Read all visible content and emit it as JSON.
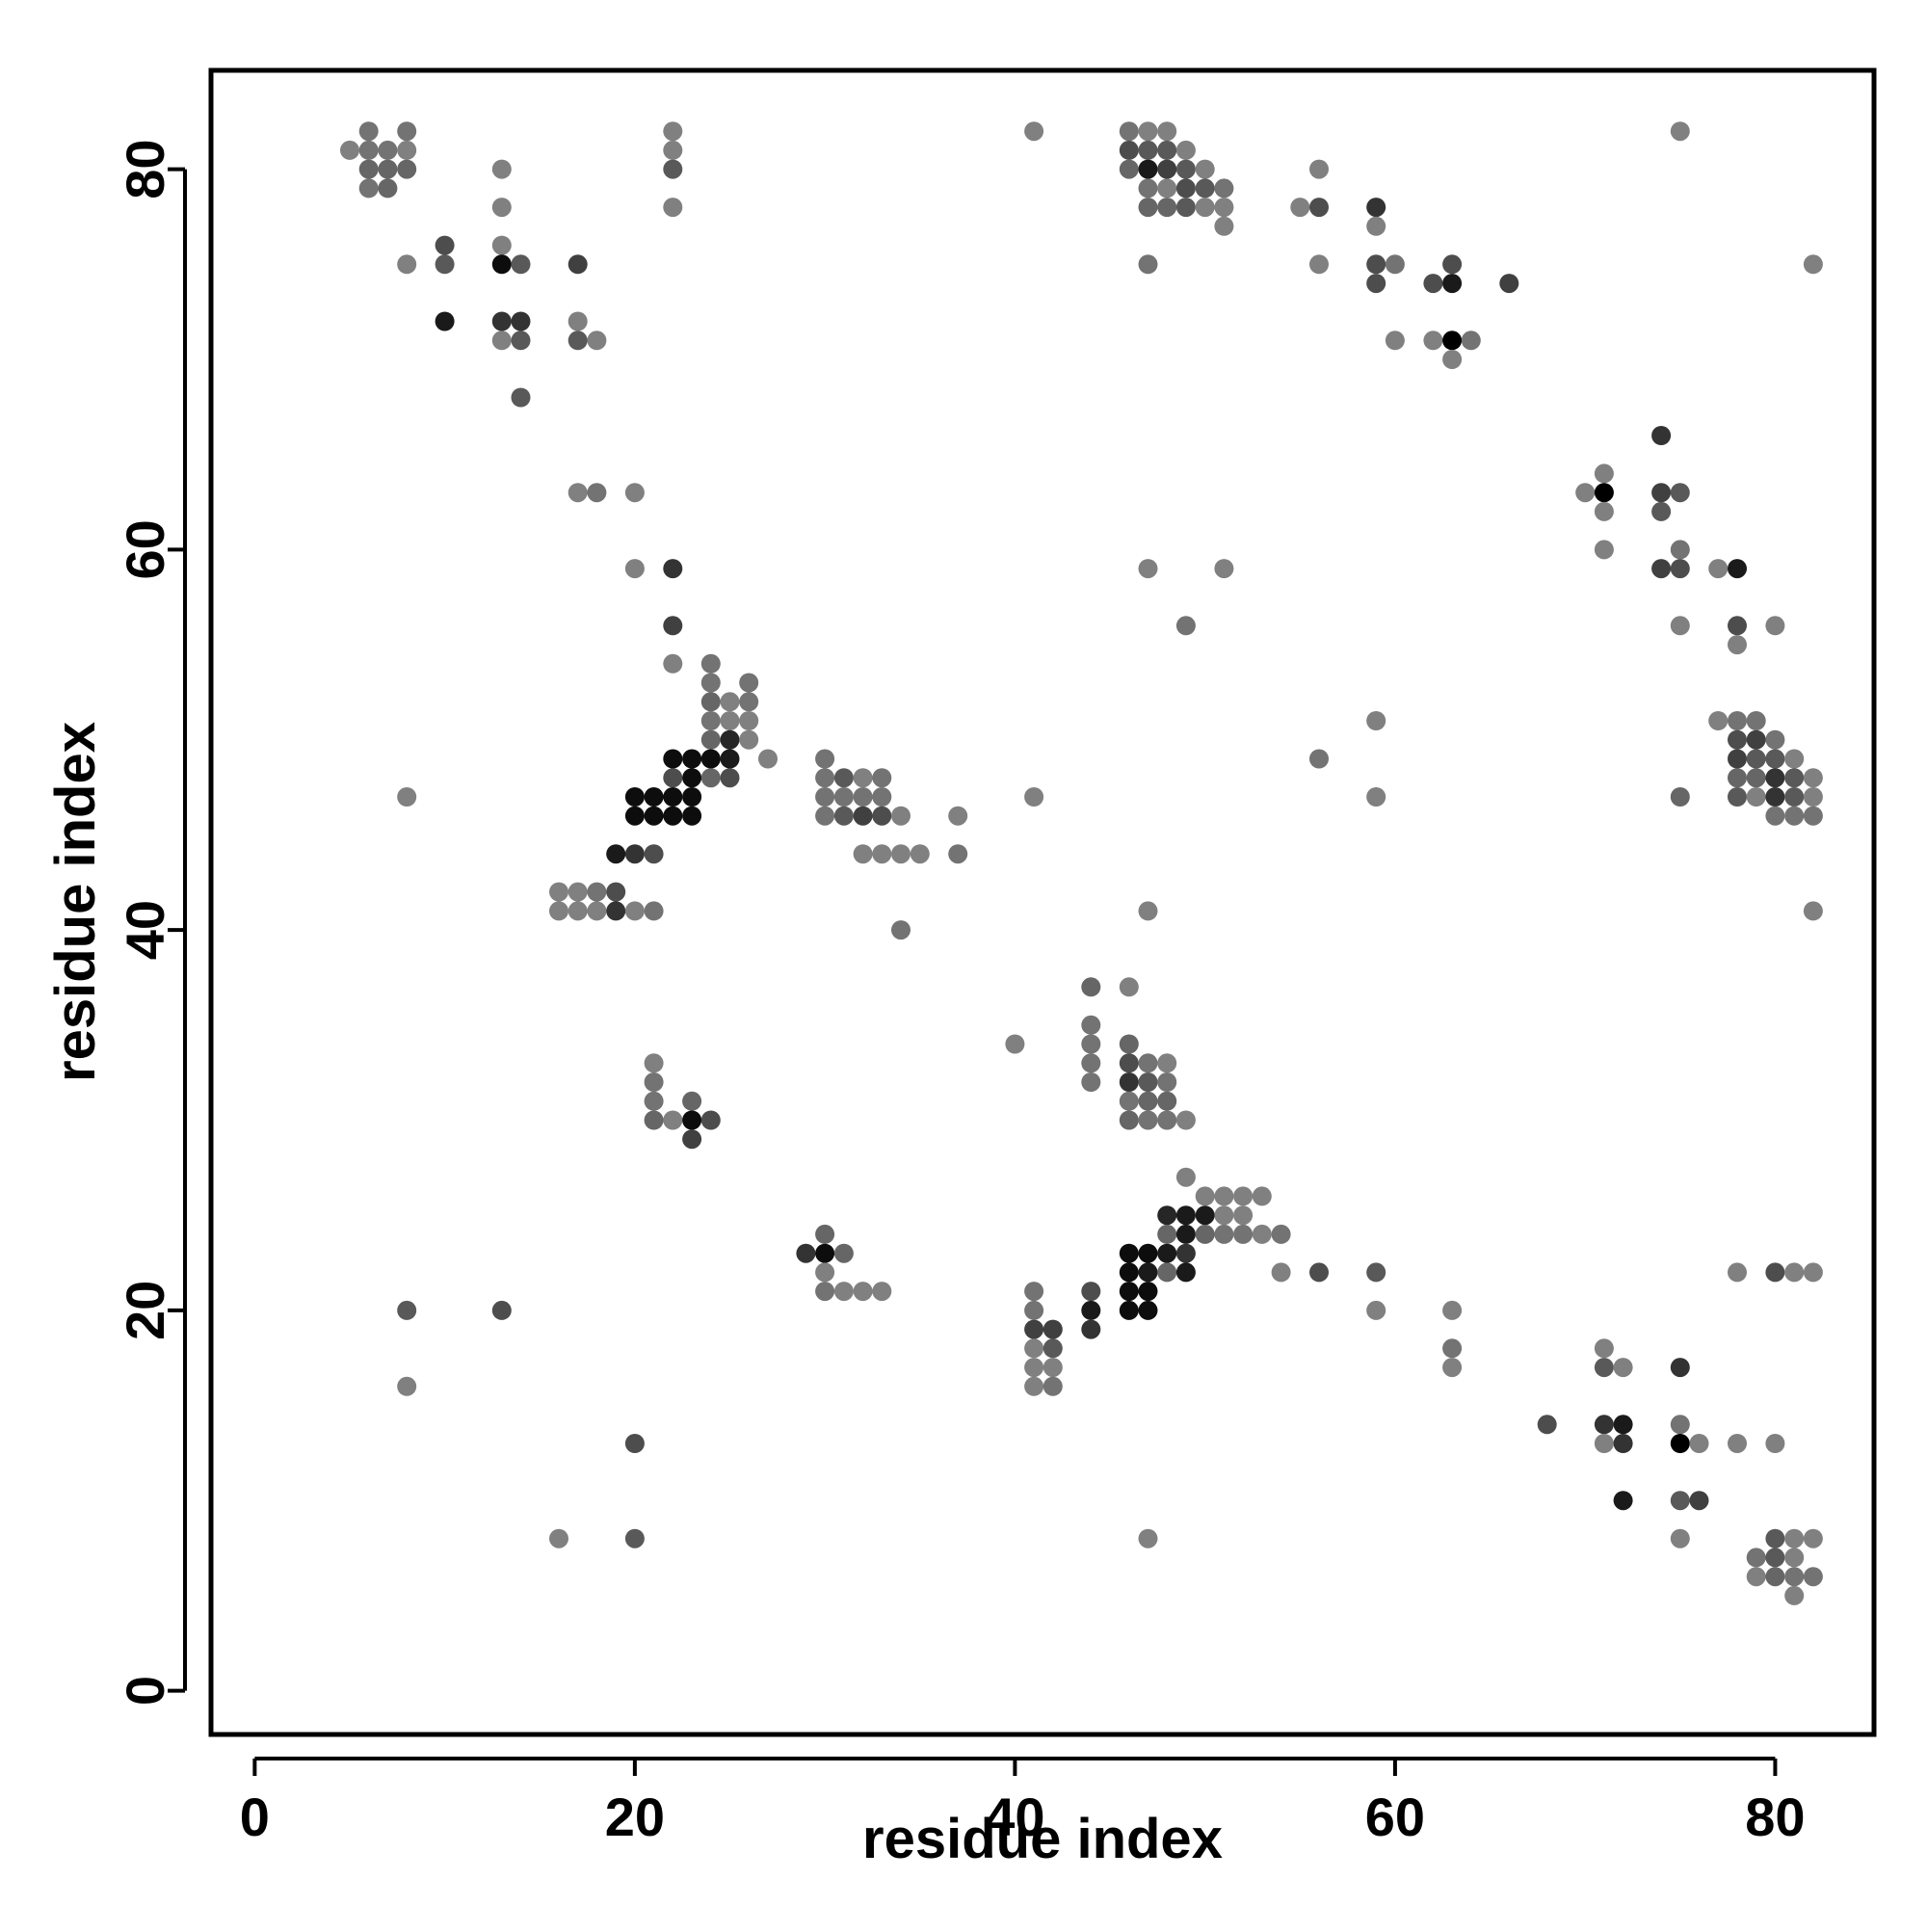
{
  "chart_data": {
    "type": "scatter",
    "title": "",
    "xlabel": "residue index",
    "ylabel": "residue index",
    "xlim": [
      -2.3,
      85.2
    ],
    "ylim": [
      -2.3,
      85.2
    ],
    "xticks": [
      "0",
      "20",
      "40",
      "60",
      "80"
    ],
    "yticks": [
      "0",
      "20",
      "40",
      "60",
      "80"
    ],
    "grid": false,
    "legend": "none",
    "point_color_scale": "grayscale (darker = stronger contact)",
    "points": [
      [
        5,
        81,
        0.5
      ],
      [
        6,
        82,
        0.45
      ],
      [
        6,
        81,
        0.45
      ],
      [
        6,
        80,
        0.4
      ],
      [
        6,
        79,
        0.45
      ],
      [
        7,
        81,
        0.45
      ],
      [
        7,
        80,
        0.4
      ],
      [
        7,
        79,
        0.4
      ],
      [
        8,
        82,
        0.45
      ],
      [
        8,
        81,
        0.5
      ],
      [
        8,
        80,
        0.4
      ],
      [
        8,
        75,
        0.5
      ],
      [
        8,
        47,
        0.5
      ],
      [
        8,
        20,
        0.35
      ],
      [
        8,
        16,
        0.5
      ],
      [
        10,
        76,
        0.3
      ],
      [
        10,
        75,
        0.35
      ],
      [
        10,
        72,
        0.1
      ],
      [
        13,
        80,
        0.5
      ],
      [
        13,
        78,
        0.5
      ],
      [
        13,
        76,
        0.5
      ],
      [
        13,
        75,
        0.05
      ],
      [
        13,
        72,
        0.2
      ],
      [
        13,
        71,
        0.5
      ],
      [
        13,
        20,
        0.3
      ],
      [
        14,
        75,
        0.35
      ],
      [
        14,
        72,
        0.2
      ],
      [
        14,
        71,
        0.35
      ],
      [
        14,
        68,
        0.35
      ],
      [
        16,
        42,
        0.5
      ],
      [
        16,
        41,
        0.5
      ],
      [
        16,
        8,
        0.5
      ],
      [
        17,
        75,
        0.25
      ],
      [
        17,
        72,
        0.5
      ],
      [
        17,
        71,
        0.35
      ],
      [
        17,
        63,
        0.5
      ],
      [
        17,
        42,
        0.5
      ],
      [
        17,
        41,
        0.5
      ],
      [
        18,
        71,
        0.5
      ],
      [
        18,
        63,
        0.45
      ],
      [
        18,
        42,
        0.45
      ],
      [
        18,
        41,
        0.5
      ],
      [
        19,
        44,
        0.1
      ],
      [
        19,
        42,
        0.3
      ],
      [
        19,
        41,
        0.2
      ],
      [
        20,
        63,
        0.5
      ],
      [
        20,
        59,
        0.5
      ],
      [
        20,
        47,
        0.05
      ],
      [
        20,
        46,
        0.05
      ],
      [
        20,
        44,
        0.2
      ],
      [
        20,
        41,
        0.5
      ],
      [
        20,
        13,
        0.3
      ],
      [
        20,
        8,
        0.35
      ],
      [
        21,
        47,
        0.05
      ],
      [
        21,
        46,
        0.05
      ],
      [
        21,
        44,
        0.3
      ],
      [
        21,
        41,
        0.45
      ],
      [
        21,
        33,
        0.5
      ],
      [
        21,
        32,
        0.45
      ],
      [
        21,
        31,
        0.45
      ],
      [
        21,
        30,
        0.4
      ],
      [
        22,
        82,
        0.5
      ],
      [
        22,
        81,
        0.5
      ],
      [
        22,
        80,
        0.35
      ],
      [
        22,
        78,
        0.5
      ],
      [
        22,
        59,
        0.2
      ],
      [
        22,
        56,
        0.25
      ],
      [
        22,
        54,
        0.5
      ],
      [
        22,
        49,
        0.05
      ],
      [
        22,
        48,
        0.3
      ],
      [
        22,
        47,
        0.05
      ],
      [
        22,
        46,
        0.05
      ],
      [
        22,
        30,
        0.5
      ],
      [
        23,
        49,
        0.05
      ],
      [
        23,
        48,
        0.05
      ],
      [
        23,
        47,
        0.05
      ],
      [
        23,
        46,
        0.05
      ],
      [
        23,
        31,
        0.4
      ],
      [
        23,
        30,
        0.05
      ],
      [
        23,
        29,
        0.25
      ],
      [
        24,
        54,
        0.45
      ],
      [
        24,
        53,
        0.45
      ],
      [
        24,
        52,
        0.4
      ],
      [
        24,
        51,
        0.45
      ],
      [
        24,
        50,
        0.4
      ],
      [
        24,
        49,
        0.05
      ],
      [
        24,
        48,
        0.4
      ],
      [
        24,
        30,
        0.3
      ],
      [
        25,
        52,
        0.5
      ],
      [
        25,
        51,
        0.5
      ],
      [
        25,
        50,
        0.15
      ],
      [
        25,
        49,
        0.1
      ],
      [
        25,
        48,
        0.3
      ],
      [
        26,
        53,
        0.45
      ],
      [
        26,
        52,
        0.45
      ],
      [
        26,
        51,
        0.5
      ],
      [
        26,
        50,
        0.5
      ],
      [
        27,
        49,
        0.5
      ],
      [
        29,
        23,
        0.2
      ],
      [
        30,
        49,
        0.45
      ],
      [
        30,
        48,
        0.45
      ],
      [
        30,
        47,
        0.45
      ],
      [
        30,
        46,
        0.45
      ],
      [
        30,
        24,
        0.4
      ],
      [
        30,
        23,
        0.05
      ],
      [
        30,
        22,
        0.5
      ],
      [
        30,
        21,
        0.45
      ],
      [
        31,
        48,
        0.35
      ],
      [
        31,
        47,
        0.45
      ],
      [
        31,
        46,
        0.35
      ],
      [
        31,
        23,
        0.4
      ],
      [
        31,
        21,
        0.5
      ],
      [
        32,
        48,
        0.5
      ],
      [
        32,
        47,
        0.45
      ],
      [
        32,
        46,
        0.25
      ],
      [
        32,
        44,
        0.5
      ],
      [
        32,
        21,
        0.5
      ],
      [
        33,
        48,
        0.45
      ],
      [
        33,
        47,
        0.45
      ],
      [
        33,
        46,
        0.3
      ],
      [
        33,
        44,
        0.5
      ],
      [
        33,
        21,
        0.5
      ],
      [
        34,
        46,
        0.5
      ],
      [
        34,
        44,
        0.5
      ],
      [
        34,
        40,
        0.45
      ],
      [
        35,
        44,
        0.5
      ],
      [
        37,
        46,
        0.5
      ],
      [
        37,
        44,
        0.45
      ],
      [
        40,
        34,
        0.5
      ],
      [
        41,
        82,
        0.5
      ],
      [
        41,
        47,
        0.5
      ],
      [
        41,
        21,
        0.45
      ],
      [
        41,
        20,
        0.45
      ],
      [
        41,
        19,
        0.25
      ],
      [
        41,
        18,
        0.5
      ],
      [
        41,
        17,
        0.5
      ],
      [
        41,
        16,
        0.5
      ],
      [
        42,
        19,
        0.25
      ],
      [
        42,
        18,
        0.35
      ],
      [
        42,
        17,
        0.5
      ],
      [
        42,
        16,
        0.45
      ],
      [
        44,
        37,
        0.4
      ],
      [
        44,
        35,
        0.45
      ],
      [
        44,
        34,
        0.45
      ],
      [
        44,
        33,
        0.45
      ],
      [
        44,
        32,
        0.45
      ],
      [
        44,
        21,
        0.3
      ],
      [
        44,
        20,
        0.1
      ],
      [
        44,
        19,
        0.2
      ],
      [
        46,
        82,
        0.45
      ],
      [
        46,
        81,
        0.3
      ],
      [
        46,
        80,
        0.4
      ],
      [
        46,
        37,
        0.5
      ],
      [
        46,
        34,
        0.4
      ],
      [
        46,
        33,
        0.3
      ],
      [
        46,
        32,
        0.2
      ],
      [
        46,
        31,
        0.45
      ],
      [
        46,
        30,
        0.4
      ],
      [
        46,
        23,
        0.05
      ],
      [
        46,
        22,
        0.05
      ],
      [
        46,
        21,
        0.05
      ],
      [
        46,
        20,
        0.05
      ],
      [
        47,
        82,
        0.5
      ],
      [
        47,
        81,
        0.35
      ],
      [
        47,
        80,
        0.1
      ],
      [
        47,
        79,
        0.45
      ],
      [
        47,
        78,
        0.4
      ],
      [
        47,
        75,
        0.45
      ],
      [
        47,
        59,
        0.5
      ],
      [
        47,
        41,
        0.5
      ],
      [
        47,
        33,
        0.45
      ],
      [
        47,
        32,
        0.35
      ],
      [
        47,
        31,
        0.4
      ],
      [
        47,
        30,
        0.45
      ],
      [
        47,
        23,
        0.05
      ],
      [
        47,
        22,
        0.1
      ],
      [
        47,
        21,
        0.05
      ],
      [
        47,
        20,
        0.05
      ],
      [
        47,
        8,
        0.5
      ],
      [
        48,
        82,
        0.5
      ],
      [
        48,
        81,
        0.35
      ],
      [
        48,
        80,
        0.25
      ],
      [
        48,
        79,
        0.5
      ],
      [
        48,
        78,
        0.4
      ],
      [
        48,
        33,
        0.5
      ],
      [
        48,
        32,
        0.45
      ],
      [
        48,
        31,
        0.4
      ],
      [
        48,
        30,
        0.45
      ],
      [
        48,
        25,
        0.15
      ],
      [
        48,
        24,
        0.4
      ],
      [
        48,
        23,
        0.1
      ],
      [
        48,
        22,
        0.4
      ],
      [
        49,
        81,
        0.5
      ],
      [
        49,
        80,
        0.35
      ],
      [
        49,
        79,
        0.3
      ],
      [
        49,
        78,
        0.35
      ],
      [
        49,
        56,
        0.45
      ],
      [
        49,
        30,
        0.5
      ],
      [
        49,
        27,
        0.5
      ],
      [
        49,
        25,
        0.1
      ],
      [
        49,
        24,
        0.1
      ],
      [
        49,
        23,
        0.2
      ],
      [
        49,
        22,
        0.1
      ],
      [
        50,
        80,
        0.5
      ],
      [
        50,
        79,
        0.35
      ],
      [
        50,
        78,
        0.5
      ],
      [
        50,
        26,
        0.5
      ],
      [
        50,
        25,
        0.1
      ],
      [
        50,
        24,
        0.4
      ],
      [
        51,
        79,
        0.45
      ],
      [
        51,
        78,
        0.5
      ],
      [
        51,
        77,
        0.5
      ],
      [
        51,
        59,
        0.5
      ],
      [
        51,
        26,
        0.5
      ],
      [
        51,
        25,
        0.5
      ],
      [
        51,
        24,
        0.45
      ],
      [
        52,
        26,
        0.5
      ],
      [
        52,
        25,
        0.5
      ],
      [
        52,
        24,
        0.45
      ],
      [
        53,
        26,
        0.5
      ],
      [
        53,
        24,
        0.5
      ],
      [
        54,
        24,
        0.45
      ],
      [
        54,
        22,
        0.5
      ],
      [
        55,
        78,
        0.5
      ],
      [
        56,
        80,
        0.5
      ],
      [
        56,
        78,
        0.3
      ],
      [
        56,
        75,
        0.5
      ],
      [
        56,
        49,
        0.45
      ],
      [
        56,
        22,
        0.3
      ],
      [
        59,
        78,
        0.2
      ],
      [
        59,
        77,
        0.5
      ],
      [
        59,
        75,
        0.3
      ],
      [
        59,
        74,
        0.3
      ],
      [
        59,
        51,
        0.5
      ],
      [
        59,
        47,
        0.5
      ],
      [
        59,
        22,
        0.35
      ],
      [
        59,
        20,
        0.5
      ],
      [
        60,
        75,
        0.45
      ],
      [
        60,
        71,
        0.5
      ],
      [
        62,
        74,
        0.3
      ],
      [
        62,
        71,
        0.5
      ],
      [
        63,
        75,
        0.3
      ],
      [
        63,
        74,
        0.1
      ],
      [
        63,
        71,
        0.0
      ],
      [
        63,
        70,
        0.5
      ],
      [
        63,
        20,
        0.5
      ],
      [
        63,
        18,
        0.45
      ],
      [
        63,
        17,
        0.5
      ],
      [
        64,
        71,
        0.45
      ],
      [
        66,
        74,
        0.25
      ],
      [
        68,
        14,
        0.3
      ],
      [
        70,
        63,
        0.5
      ],
      [
        71,
        64,
        0.5
      ],
      [
        71,
        63,
        0.0
      ],
      [
        71,
        62,
        0.5
      ],
      [
        71,
        60,
        0.5
      ],
      [
        71,
        18,
        0.5
      ],
      [
        71,
        17,
        0.35
      ],
      [
        71,
        14,
        0.2
      ],
      [
        71,
        13,
        0.5
      ],
      [
        72,
        17,
        0.5
      ],
      [
        72,
        14,
        0.1
      ],
      [
        72,
        13,
        0.2
      ],
      [
        72,
        10,
        0.1
      ],
      [
        74,
        66,
        0.2
      ],
      [
        74,
        63,
        0.25
      ],
      [
        74,
        62,
        0.35
      ],
      [
        74,
        59,
        0.25
      ],
      [
        75,
        82,
        0.5
      ],
      [
        75,
        63,
        0.35
      ],
      [
        75,
        60,
        0.45
      ],
      [
        75,
        59,
        0.3
      ],
      [
        75,
        56,
        0.5
      ],
      [
        75,
        47,
        0.4
      ],
      [
        75,
        17,
        0.2
      ],
      [
        75,
        14,
        0.45
      ],
      [
        75,
        13,
        0.0
      ],
      [
        75,
        10,
        0.35
      ],
      [
        75,
        8,
        0.5
      ],
      [
        76,
        13,
        0.5
      ],
      [
        76,
        10,
        0.25
      ],
      [
        77,
        59,
        0.5
      ],
      [
        77,
        51,
        0.5
      ],
      [
        78,
        59,
        0.1
      ],
      [
        78,
        56,
        0.3
      ],
      [
        78,
        55,
        0.5
      ],
      [
        78,
        51,
        0.45
      ],
      [
        78,
        50,
        0.3
      ],
      [
        78,
        49,
        0.25
      ],
      [
        78,
        48,
        0.4
      ],
      [
        78,
        47,
        0.35
      ],
      [
        78,
        22,
        0.5
      ],
      [
        78,
        13,
        0.5
      ],
      [
        79,
        51,
        0.45
      ],
      [
        79,
        50,
        0.25
      ],
      [
        79,
        49,
        0.35
      ],
      [
        79,
        48,
        0.4
      ],
      [
        79,
        47,
        0.5
      ],
      [
        79,
        7,
        0.45
      ],
      [
        79,
        6,
        0.5
      ],
      [
        80,
        56,
        0.5
      ],
      [
        80,
        50,
        0.45
      ],
      [
        80,
        49,
        0.35
      ],
      [
        80,
        48,
        0.2
      ],
      [
        80,
        47,
        0.2
      ],
      [
        80,
        46,
        0.45
      ],
      [
        80,
        22,
        0.3
      ],
      [
        80,
        13,
        0.5
      ],
      [
        80,
        8,
        0.35
      ],
      [
        80,
        7,
        0.35
      ],
      [
        80,
        6,
        0.4
      ],
      [
        81,
        49,
        0.5
      ],
      [
        81,
        48,
        0.35
      ],
      [
        81,
        47,
        0.35
      ],
      [
        81,
        46,
        0.45
      ],
      [
        81,
        22,
        0.5
      ],
      [
        81,
        8,
        0.5
      ],
      [
        81,
        7,
        0.5
      ],
      [
        81,
        6,
        0.45
      ],
      [
        81,
        5,
        0.5
      ],
      [
        82,
        75,
        0.5
      ],
      [
        82,
        48,
        0.5
      ],
      [
        82,
        47,
        0.5
      ],
      [
        82,
        46,
        0.45
      ],
      [
        82,
        41,
        0.5
      ],
      [
        82,
        22,
        0.5
      ],
      [
        82,
        8,
        0.5
      ],
      [
        82,
        6,
        0.45
      ]
    ]
  }
}
